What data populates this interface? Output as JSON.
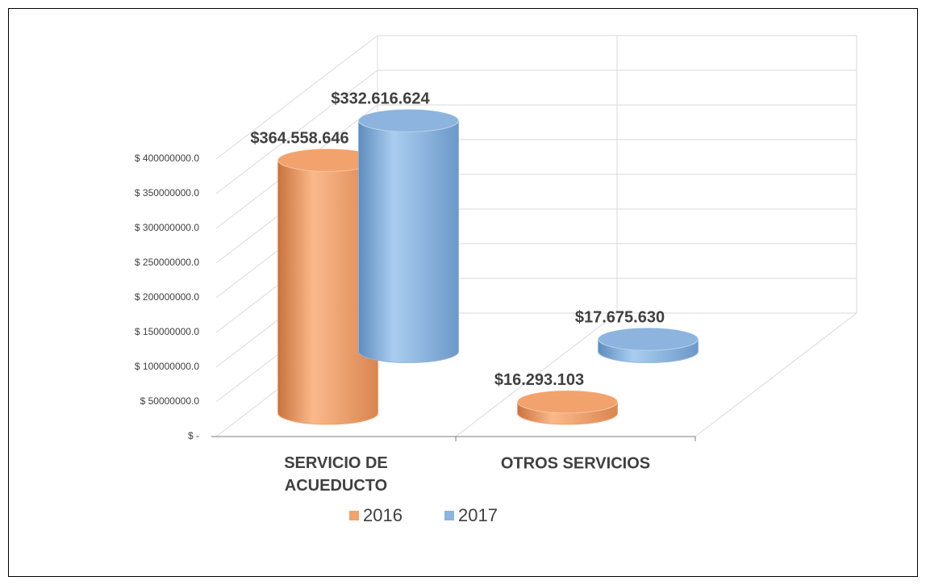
{
  "chart_data": {
    "type": "bar",
    "categories": [
      "SERVICIO DE ACUEDUCTO",
      "OTROS SERVICIOS"
    ],
    "series": [
      {
        "name": "2016",
        "color": "#f2a26c",
        "values": [
          364558646,
          16293103
        ],
        "value_labels": [
          "$364.558.646",
          "$16.293.103"
        ]
      },
      {
        "name": "2017",
        "color": "#8cb4de",
        "values": [
          332616624,
          17675630
        ],
        "value_labels": [
          "$332.616.624",
          "$17.675.630"
        ]
      }
    ],
    "ylim": [
      0,
      400000000
    ],
    "yticks": [
      {
        "value": 0,
        "label": "$ -"
      },
      {
        "value": 50000000,
        "label": "$ 50000000.0"
      },
      {
        "value": 100000000,
        "label": "$ 100000000.0"
      },
      {
        "value": 150000000,
        "label": "$ 150000000.0"
      },
      {
        "value": 200000000,
        "label": "$ 200000000.0"
      },
      {
        "value": 250000000,
        "label": "$ 250000000.0"
      },
      {
        "value": 300000000,
        "label": "$ 300000000.0"
      },
      {
        "value": 350000000,
        "label": "$ 350000000.0"
      },
      {
        "value": 400000000,
        "label": "$ 400000000.0"
      }
    ],
    "grid": true,
    "legend": "bottom"
  }
}
